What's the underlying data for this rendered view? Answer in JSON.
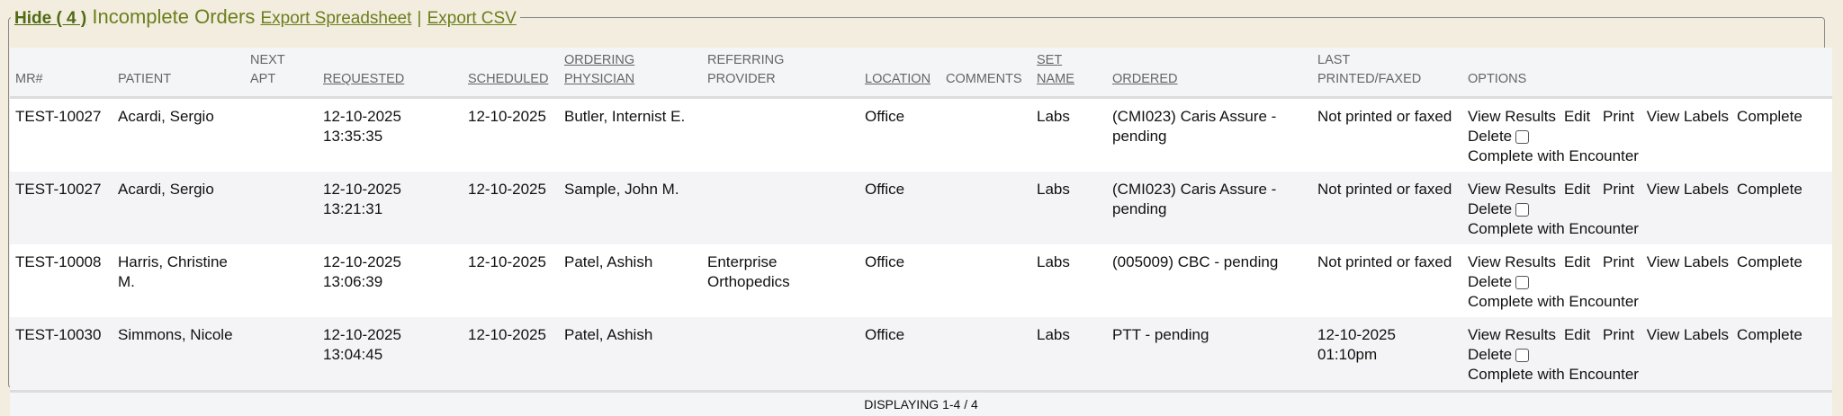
{
  "legend": {
    "hide_label": "Hide ( 4 )",
    "title": "Incomplete Orders",
    "export_spreadsheet": "Export Spreadsheet",
    "separator": "|",
    "export_csv": "Export CSV"
  },
  "columns": [
    {
      "line1": "",
      "line2": "MR#",
      "sortable": false
    },
    {
      "line1": "",
      "line2": "PATIENT",
      "sortable": false
    },
    {
      "line1": "NEXT",
      "line2": "APT",
      "sortable": false
    },
    {
      "line1": "",
      "line2": "REQUESTED",
      "sortable": true
    },
    {
      "line1": "",
      "line2": "SCHEDULED",
      "sortable": true
    },
    {
      "line1": "ORDERING",
      "line2": "PHYSICIAN",
      "sortable": true
    },
    {
      "line1": "REFERRING",
      "line2": "PROVIDER",
      "sortable": false
    },
    {
      "line1": "",
      "line2": "LOCATION",
      "sortable": true
    },
    {
      "line1": "",
      "line2": "COMMENTS",
      "sortable": false
    },
    {
      "line1": "SET",
      "line2": "NAME",
      "sortable": true
    },
    {
      "line1": "",
      "line2": "ORDERED",
      "sortable": true
    },
    {
      "line1": "LAST",
      "line2": "PRINTED/FAXED",
      "sortable": false
    },
    {
      "line1": "",
      "line2": "OPTIONS",
      "sortable": false
    }
  ],
  "options": {
    "view_results": "View Results",
    "edit": "Edit",
    "print": "Print",
    "view_labels": "View Labels",
    "complete": "Complete",
    "delete": "Delete",
    "complete_with_encounter": "Complete with Encounter"
  },
  "rows": [
    {
      "mr": "TEST-10027",
      "patient": "Acardi, Sergio",
      "next_apt": "",
      "requested_date": "12-10-2025",
      "requested_time": "13:35:35",
      "scheduled": "12-10-2025",
      "physician": "Butler, Internist E.",
      "referring": "",
      "location": "Office",
      "comments": "",
      "set_name": "Labs",
      "ordered": "(CMI023) Caris Assure - pending",
      "last_printed": "Not printed or faxed"
    },
    {
      "mr": "TEST-10027",
      "patient": "Acardi, Sergio",
      "next_apt": "",
      "requested_date": "12-10-2025",
      "requested_time": "13:21:31",
      "scheduled": "12-10-2025",
      "physician": "Sample, John M.",
      "referring": "",
      "location": "Office",
      "comments": "",
      "set_name": "Labs",
      "ordered": "(CMI023) Caris Assure - pending",
      "last_printed": "Not printed or faxed"
    },
    {
      "mr": "TEST-10008",
      "patient": "Harris, Christine M.",
      "next_apt": "",
      "requested_date": "12-10-2025",
      "requested_time": "13:06:39",
      "scheduled": "12-10-2025",
      "physician": "Patel, Ashish",
      "referring": "Enterprise Orthopedics",
      "location": "Office",
      "comments": "",
      "set_name": "Labs",
      "ordered": "(005009) CBC - pending",
      "last_printed": "Not printed or faxed"
    },
    {
      "mr": "TEST-10030",
      "patient": "Simmons, Nicole",
      "next_apt": "",
      "requested_date": "12-10-2025",
      "requested_time": "13:04:45",
      "scheduled": "12-10-2025",
      "physician": "Patel, Ashish",
      "referring": "",
      "location": "Office",
      "comments": "",
      "set_name": "Labs",
      "ordered": "PTT - pending",
      "last_printed": "12-10-2025 01:10pm"
    }
  ],
  "footer": {
    "displaying": "DISPLAYING 1-4 / 4"
  }
}
